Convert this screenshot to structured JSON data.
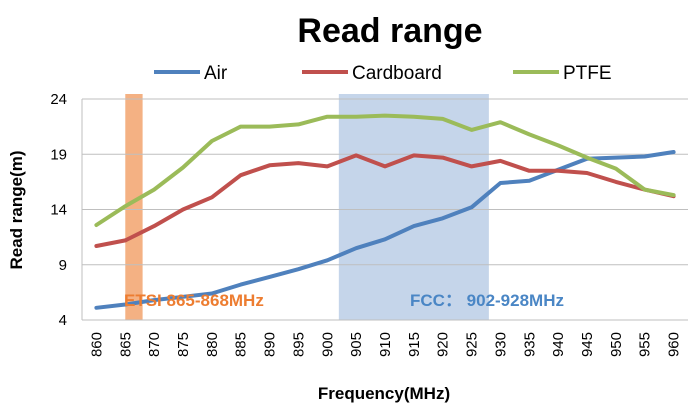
{
  "chart_data": {
    "type": "line",
    "title": "Read range",
    "xlabel": "Frequency(MHz)",
    "ylabel": "Read range(m)",
    "x": [
      860,
      865,
      870,
      875,
      880,
      885,
      890,
      895,
      900,
      905,
      910,
      915,
      920,
      925,
      930,
      935,
      940,
      945,
      950,
      955,
      960
    ],
    "x_tick_labels": [
      "860",
      "865",
      "870",
      "875",
      "880",
      "885",
      "890",
      "895",
      "900",
      "905",
      "910",
      "915",
      "920",
      "925",
      "930",
      "935",
      "940",
      "945",
      "950",
      "955",
      "960"
    ],
    "ylim": [
      4,
      24
    ],
    "y_ticks": [
      4,
      9,
      14,
      19,
      24
    ],
    "y_tick_labels": [
      "4",
      "9",
      "14",
      "19",
      "24"
    ],
    "grid": "horizontal",
    "legend_position": "top",
    "series": [
      {
        "name": "Air",
        "color": "#4f81bd",
        "values": [
          5.1,
          5.4,
          5.8,
          6.1,
          6.4,
          7.2,
          7.9,
          8.6,
          9.4,
          10.5,
          11.3,
          12.5,
          13.2,
          14.2,
          16.4,
          16.6,
          17.6,
          18.6,
          18.7,
          18.8,
          19.2
        ]
      },
      {
        "name": "Cardboard",
        "color": "#c0504d",
        "values": [
          10.7,
          11.2,
          12.5,
          14.0,
          15.1,
          17.1,
          18.0,
          18.2,
          17.9,
          18.9,
          17.9,
          18.9,
          18.7,
          17.9,
          18.4,
          17.5,
          17.5,
          17.3,
          16.5,
          15.8,
          15.2
        ]
      },
      {
        "name": "PTFE",
        "color": "#9bbb59",
        "values": [
          12.6,
          14.3,
          15.8,
          17.8,
          20.2,
          21.5,
          21.5,
          21.7,
          22.4,
          22.4,
          22.5,
          22.4,
          22.2,
          21.2,
          21.9,
          20.8,
          19.8,
          18.7,
          17.7,
          15.8,
          15.3
        ]
      }
    ],
    "bands": [
      {
        "label": "ETSI 865-868MHz",
        "x_start": 865,
        "x_end": 868,
        "color": "#f4b183",
        "label_color": "#ed7d31"
      },
      {
        "label": "FCC： 902-928MHz",
        "x_start": 902,
        "x_end": 928,
        "color": "#c5d5ea",
        "label_color": "#4a86c5"
      }
    ]
  }
}
